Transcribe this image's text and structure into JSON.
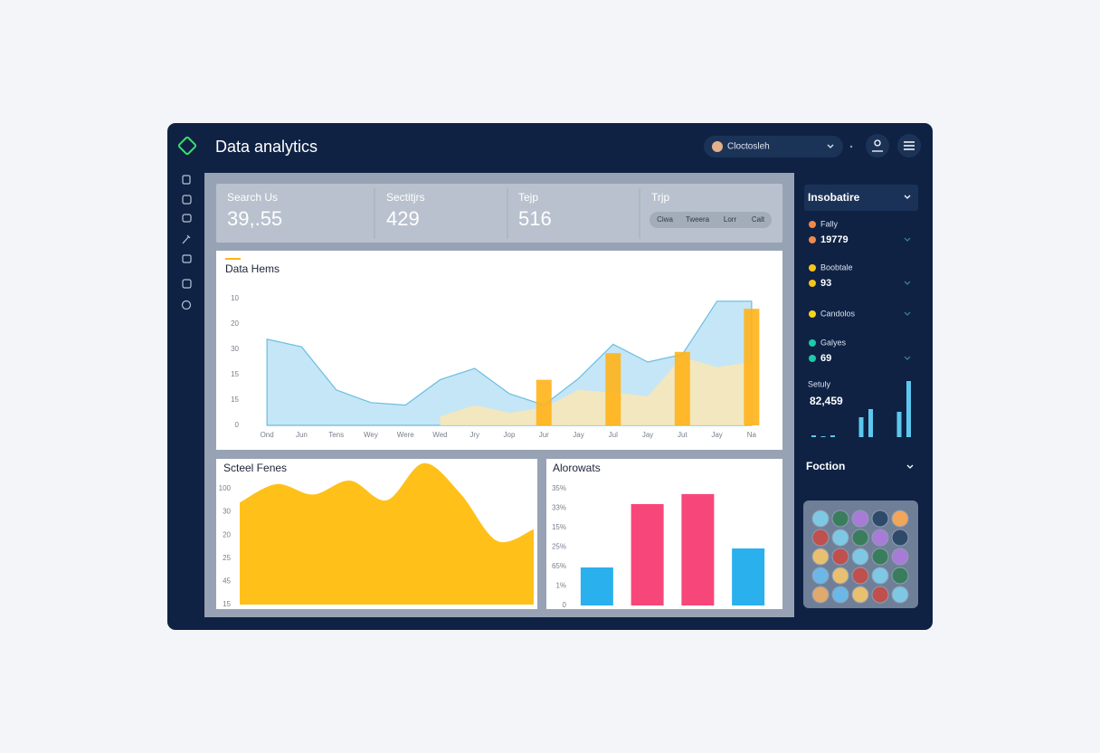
{
  "header": {
    "title": "Data analytics",
    "account": "Cloctosleh"
  },
  "stats": [
    {
      "label": "Search Us",
      "value": "39,.55"
    },
    {
      "label": "Sectitjrs",
      "value": 429
    },
    {
      "label": "Tejp",
      "value": 516
    }
  ],
  "filter": {
    "label": "Trjp",
    "options": [
      "Ciwa",
      "Tweera",
      "Lorr",
      "Calt"
    ]
  },
  "sidebar": {
    "title": "Insobatire",
    "items": [
      {
        "name": "Fally",
        "value": 19779,
        "color": "#f08a4b"
      },
      {
        "name": "Boobtale",
        "value": 93,
        "color": "#f5c518"
      },
      {
        "name": "Candolos",
        "color": "#f2d51c"
      },
      {
        "name": "Galyes",
        "value": 69,
        "color": "#1fc9a8"
      }
    ],
    "section": "Foction"
  },
  "chart_data": [
    {
      "type": "area",
      "title": "Data Hems",
      "categories": [
        "Ond",
        "Jun",
        "Tens",
        "Wey",
        "Were",
        "Wed",
        "Jry",
        "Jop",
        "Jur",
        "Jay",
        "Jul",
        "Jay",
        "Jut",
        "Jay",
        "Na"
      ],
      "y_labels": [
        "10",
        "20",
        "30",
        "15",
        "15",
        "0"
      ],
      "ylim": [
        0,
        50
      ],
      "series": [
        {
          "type": "area",
          "color": "#bfe3f5",
          "values": [
            34,
            31,
            14,
            9,
            8,
            18,
            22.5,
            12.5,
            8,
            18.5,
            32,
            25,
            28,
            49,
            49
          ]
        },
        {
          "type": "area",
          "color": "#f6e7b9",
          "values": [
            null,
            null,
            null,
            null,
            null,
            3.5,
            8,
            5,
            7,
            14,
            13,
            11.5,
            27,
            23,
            25
          ]
        },
        {
          "type": "bar",
          "color": "#ffb31a",
          "values": [
            null,
            null,
            null,
            null,
            null,
            null,
            null,
            null,
            18,
            null,
            28.5,
            null,
            29,
            null,
            46
          ]
        }
      ]
    },
    {
      "type": "area",
      "title": "Scteel Fenes",
      "y_labels": [
        "100",
        "30",
        "20",
        "25",
        "45",
        "15"
      ],
      "ylim": [
        0,
        100
      ],
      "color": "#ffb900",
      "values": [
        88,
        104,
        95,
        107,
        90,
        122,
        96,
        55,
        65
      ]
    },
    {
      "type": "bar",
      "title": "Alorowats",
      "y_labels": [
        "35%",
        "33%",
        "15%",
        "25%",
        "65%",
        "1%",
        "0"
      ],
      "ylim": [
        0,
        35
      ],
      "values": [
        11.4,
        30.4,
        33.4,
        17.1
      ],
      "colors": [
        "#2bb0ee",
        "#f7477a",
        "#f7477a",
        "#2bb0ee"
      ]
    },
    {
      "type": "bar",
      "title": "Setuly",
      "subtitle": "82,459",
      "color": "#5cc8ef",
      "values": [
        2,
        1,
        2,
        null,
        null,
        22,
        31,
        null,
        null,
        28,
        62
      ]
    }
  ]
}
